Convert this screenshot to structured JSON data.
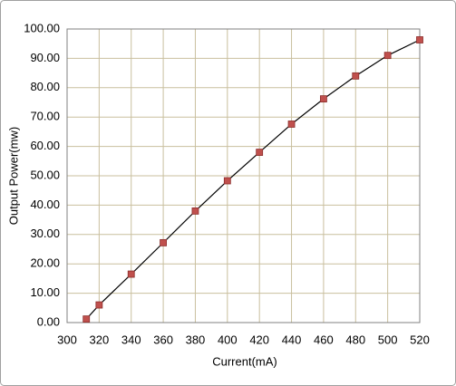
{
  "chart_data": {
    "type": "scatter",
    "x_label": "Current(mA)",
    "y_label": "Output Power(mw)",
    "series": [
      {
        "x": [
          312,
          320,
          340,
          360,
          380,
          400,
          420,
          440,
          460,
          480,
          500,
          520
        ],
        "values": [
          1.2,
          6,
          16.5,
          27.2,
          38,
          48.3,
          58,
          67.6,
          76.2,
          84,
          91,
          96.3
        ],
        "color": "#c0504d",
        "line_color": "#000000"
      }
    ],
    "xlim": [
      300,
      520
    ],
    "xticks": [
      300,
      320,
      340,
      360,
      380,
      400,
      420,
      440,
      460,
      480,
      500,
      520
    ],
    "ylim": [
      0,
      100
    ],
    "yticks": [
      {
        "value": 0,
        "label": "0.00"
      },
      {
        "value": 10,
        "label": "10.00"
      },
      {
        "value": 20,
        "label": "20.00"
      },
      {
        "value": 30,
        "label": "30.00"
      },
      {
        "value": 40,
        "label": "40.00"
      },
      {
        "value": 50,
        "label": "50.00"
      },
      {
        "value": 60,
        "label": "60.00"
      },
      {
        "value": 70,
        "label": "70.00"
      },
      {
        "value": 80,
        "label": "80.00"
      },
      {
        "value": 90,
        "label": "90.00"
      },
      {
        "value": 100,
        "label": "100.00"
      }
    ],
    "grid": true,
    "grid_color": "#c9bf9e"
  }
}
